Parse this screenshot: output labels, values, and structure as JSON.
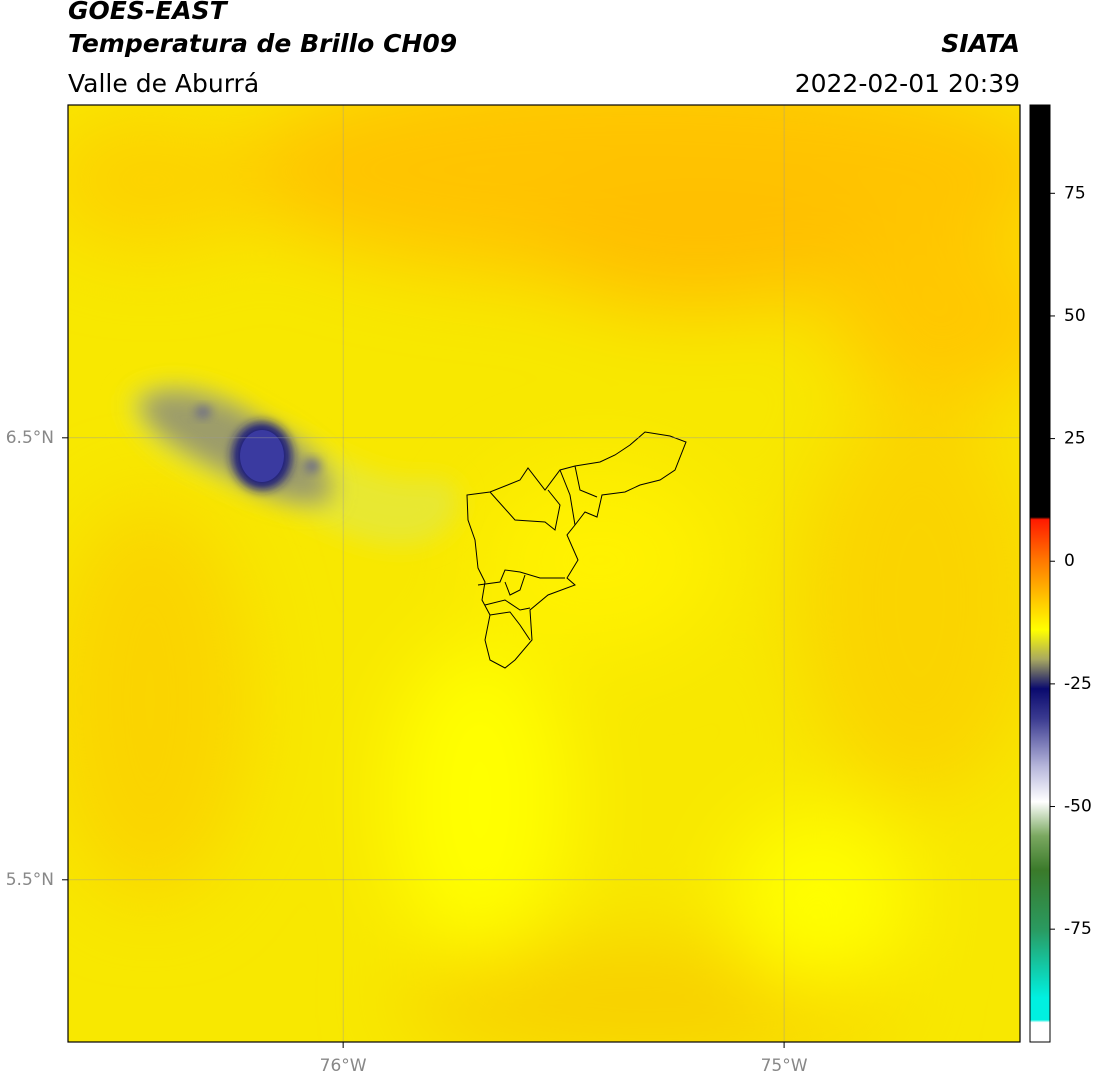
{
  "chart_data": {
    "type": "map",
    "title": "GOES-EAST",
    "subtitle": "Temperatura de Brillo CH09",
    "region": "Valle de Aburrá",
    "source": "SIATA",
    "datetime": "2022-02-01 20:39",
    "lonlim": [
      -76.624,
      -74.465
    ],
    "latlim": [
      5.133,
      7.253
    ],
    "xticks": [
      {
        "value": -76,
        "label": "76°W"
      },
      {
        "value": -75,
        "label": "75°W"
      }
    ],
    "yticks": [
      {
        "value": 6.5,
        "label": "6.5°N"
      },
      {
        "value": 5.5,
        "label": "5.5°N"
      }
    ],
    "grid": true,
    "colorbar": {
      "lim": [
        -98,
        93
      ],
      "ticks": [
        75,
        50,
        25,
        0,
        -25,
        -50,
        -75
      ],
      "stops": [
        [
          93,
          "#000000"
        ],
        [
          9,
          "#000000"
        ],
        [
          8.5,
          "#ff1a00"
        ],
        [
          0,
          "#ff7a00"
        ],
        [
          -8,
          "#ffc800"
        ],
        [
          -14,
          "#ffff00"
        ],
        [
          -20,
          "#a8a860"
        ],
        [
          -26,
          "#0a0a6e"
        ],
        [
          -32,
          "#3a3a90"
        ],
        [
          -42,
          "#b8b8dc"
        ],
        [
          -49,
          "#ffffff"
        ],
        [
          -56,
          "#7aa860"
        ],
        [
          -63,
          "#3a7a2a"
        ],
        [
          -75,
          "#2a9a60"
        ],
        [
          -89,
          "#00f0e0"
        ],
        [
          -93.5,
          "#00f0e0"
        ],
        [
          -94,
          "#ffffff"
        ],
        [
          -98,
          "#ffffff"
        ]
      ]
    }
  }
}
